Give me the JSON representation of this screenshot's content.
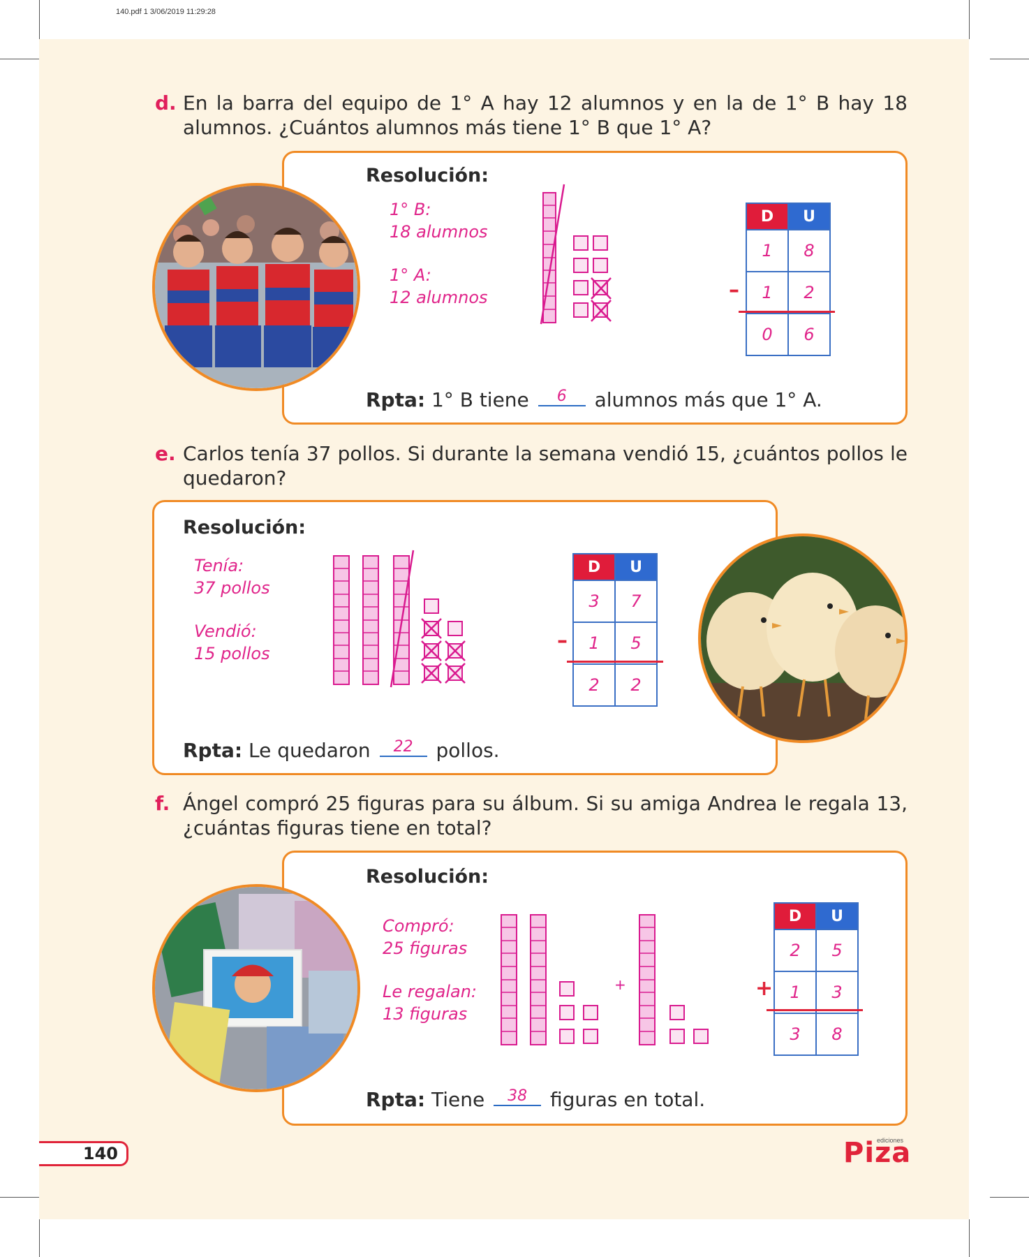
{
  "header": {
    "stamp": "140.pdf   1   3/06/2019   11:29:28"
  },
  "problems": [
    {
      "letter": "d.",
      "text": "En la barra del equipo de 1° A hay 12 alumnos y en la de 1° B hay 18 alumnos. ¿Cuántos alumnos más tiene 1° B que 1° A?",
      "resolution_title": "Resolución:",
      "data_lines": [
        "1° B:",
        "18 alumnos",
        "1° A:",
        "12 alumnos"
      ],
      "table": {
        "head_d": "D",
        "head_u": "U",
        "rows": [
          [
            "1",
            "8"
          ],
          [
            "1",
            "2"
          ],
          [
            "0",
            "6"
          ]
        ],
        "operator": "–"
      },
      "answer": {
        "label": "Rpta:",
        "before": " 1° B tiene ",
        "value": "6",
        "after": " alumnos más que 1° A."
      },
      "image": "children-cheering-photo"
    },
    {
      "letter": "e.",
      "text": "Carlos tenía 37 pollos. Si durante la semana vendió 15, ¿cuántos pollos le quedaron?",
      "resolution_title": "Resolución:",
      "data_lines": [
        "Tenía:",
        "37 pollos",
        "Vendió:",
        "15 pollos"
      ],
      "table": {
        "head_d": "D",
        "head_u": "U",
        "rows": [
          [
            "3",
            "7"
          ],
          [
            "1",
            "5"
          ],
          [
            "2",
            "2"
          ]
        ],
        "operator": "–"
      },
      "answer": {
        "label": "Rpta:",
        "before": " Le quedaron ",
        "value": "22",
        "after": " pollos."
      },
      "image": "chicks-photo"
    },
    {
      "letter": "f.",
      "text": "Ángel compró 25 figuras para su álbum. Si su amiga Andrea le regala 13, ¿cuántas figuras tiene en total?",
      "resolution_title": "Resolución:",
      "data_lines": [
        "Compró:",
        "25 figuras",
        "Le regalan:",
        "13 figuras"
      ],
      "table": {
        "head_d": "D",
        "head_u": "U",
        "rows": [
          [
            "2",
            "5"
          ],
          [
            "1",
            "3"
          ],
          [
            "3",
            "8"
          ]
        ],
        "operator": "+"
      },
      "plus_sign": "+",
      "answer": {
        "label": "Rpta:",
        "before": " Tiene ",
        "value": "38",
        "after": " figuras en total."
      },
      "image": "sticker-cards-photo"
    }
  ],
  "footer": {
    "page_number": "140",
    "logo": "Piza",
    "logo_small": "ediciones"
  }
}
